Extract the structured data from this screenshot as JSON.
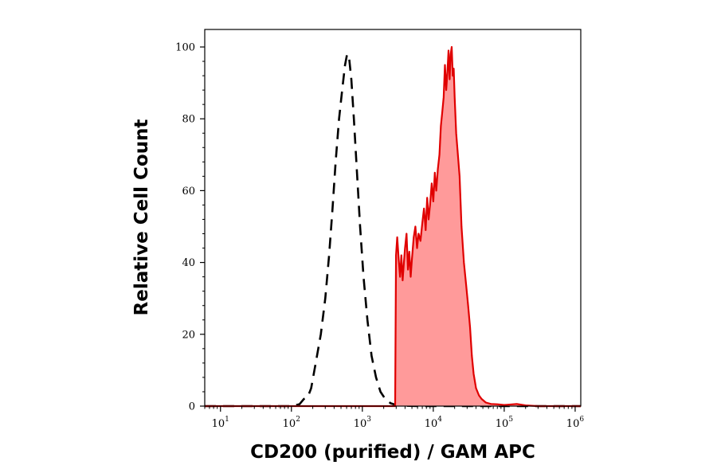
{
  "chart_data": {
    "type": "area",
    "title": "",
    "xlabel": "CD200 (purified) / GAM APC",
    "ylabel": "Relative Cell Count",
    "x_scale": "log",
    "xlim": [
      6,
      1200000
    ],
    "ylim": [
      0,
      100
    ],
    "grid": false,
    "legend": "none",
    "x_ticks": [
      {
        "base": "10",
        "exp": "1",
        "value": 10
      },
      {
        "base": "10",
        "exp": "2",
        "value": 100
      },
      {
        "base": "10",
        "exp": "3",
        "value": 1000
      },
      {
        "base": "10",
        "exp": "4",
        "value": 10000
      },
      {
        "base": "10",
        "exp": "5",
        "value": 100000
      },
      {
        "base": "10",
        "exp": "6",
        "value": 1000000
      }
    ],
    "y_ticks": [
      {
        "label": "0",
        "value": 0
      },
      {
        "label": "20",
        "value": 20
      },
      {
        "label": "40",
        "value": 40
      },
      {
        "label": "60",
        "value": 60
      },
      {
        "label": "80",
        "value": 80
      },
      {
        "label": "100",
        "value": 100
      }
    ],
    "series": [
      {
        "style": "dashed",
        "color": "#000000",
        "fill": "none",
        "points": [
          [
            6,
            0
          ],
          [
            100,
            0
          ],
          [
            130,
            0.5
          ],
          [
            150,
            2
          ],
          [
            170,
            2.5
          ],
          [
            190,
            5
          ],
          [
            220,
            12
          ],
          [
            260,
            20
          ],
          [
            300,
            30
          ],
          [
            340,
            42
          ],
          [
            380,
            55
          ],
          [
            420,
            68
          ],
          [
            470,
            80
          ],
          [
            520,
            88
          ],
          [
            570,
            95
          ],
          [
            610,
            98
          ],
          [
            650,
            97
          ],
          [
            700,
            91
          ],
          [
            760,
            80
          ],
          [
            840,
            65
          ],
          [
            930,
            50
          ],
          [
            1040,
            36
          ],
          [
            1180,
            24
          ],
          [
            1350,
            14
          ],
          [
            1560,
            8
          ],
          [
            1800,
            4
          ],
          [
            2100,
            2
          ],
          [
            2500,
            0.8
          ],
          [
            3000,
            0.3
          ],
          [
            4000,
            0.1
          ],
          [
            6000,
            0
          ],
          [
            1200000,
            0
          ]
        ]
      },
      {
        "style": "solid",
        "color": "#e00000",
        "fill": "#ff9a9a",
        "points": [
          [
            6,
            0
          ],
          [
            2900,
            0
          ],
          [
            2980,
            42
          ],
          [
            3100,
            47
          ],
          [
            3250,
            41
          ],
          [
            3400,
            36
          ],
          [
            3550,
            42
          ],
          [
            3700,
            35
          ],
          [
            3850,
            40
          ],
          [
            4000,
            44
          ],
          [
            4200,
            48
          ],
          [
            4400,
            38
          ],
          [
            4600,
            43
          ],
          [
            4800,
            36
          ],
          [
            5000,
            41
          ],
          [
            5300,
            47
          ],
          [
            5600,
            50
          ],
          [
            5900,
            44
          ],
          [
            6200,
            48
          ],
          [
            6600,
            46
          ],
          [
            7000,
            51
          ],
          [
            7400,
            55
          ],
          [
            7800,
            49
          ],
          [
            8200,
            58
          ],
          [
            8600,
            52
          ],
          [
            9000,
            56
          ],
          [
            9500,
            62
          ],
          [
            10000,
            57
          ],
          [
            10500,
            65
          ],
          [
            11000,
            60
          ],
          [
            11600,
            66
          ],
          [
            12200,
            70
          ],
          [
            12800,
            78
          ],
          [
            13400,
            82
          ],
          [
            14000,
            86
          ],
          [
            14600,
            95
          ],
          [
            15200,
            88
          ],
          [
            15800,
            93
          ],
          [
            16400,
            99
          ],
          [
            17000,
            91
          ],
          [
            17600,
            98
          ],
          [
            18200,
            100
          ],
          [
            18800,
            92
          ],
          [
            19400,
            94
          ],
          [
            20000,
            86
          ],
          [
            21000,
            76
          ],
          [
            22000,
            71
          ],
          [
            23500,
            64
          ],
          [
            25000,
            50
          ],
          [
            27000,
            40
          ],
          [
            29000,
            34
          ],
          [
            31000,
            28
          ],
          [
            33000,
            22
          ],
          [
            35000,
            14
          ],
          [
            37000,
            9
          ],
          [
            40000,
            5
          ],
          [
            44000,
            3
          ],
          [
            48000,
            2
          ],
          [
            55000,
            1
          ],
          [
            65000,
            0.6
          ],
          [
            80000,
            0.5
          ],
          [
            100000,
            0.3
          ],
          [
            150000,
            0.6
          ],
          [
            200000,
            0.2
          ],
          [
            300000,
            0
          ],
          [
            1200000,
            0
          ]
        ]
      }
    ]
  }
}
